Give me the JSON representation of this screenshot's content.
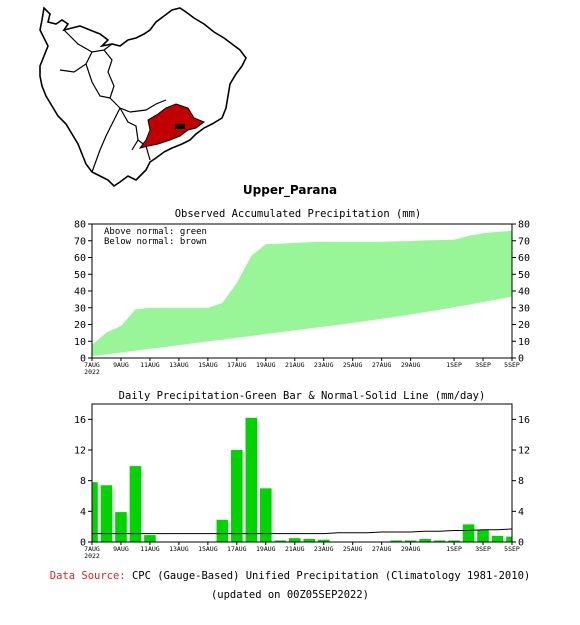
{
  "region_title": "Upper_Parana",
  "map": {
    "highlight_color": "#c00000"
  },
  "footer": {
    "source_label": "Data Source:",
    "source_text": "CPC (Gauge-Based) Unified Precipitation (Climatology 1981-2010)",
    "updated_text": "(updated on 00Z05SEP2022)"
  },
  "colors": {
    "green_area": "#98f598",
    "bar": "#00d400"
  },
  "chart_data": [
    {
      "type": "area",
      "title": "Observed Accumulated Precipitation (mm)",
      "legend": [
        "Above normal: green",
        "Below normal: brown"
      ],
      "legend_position": "top-left",
      "x_tick_labels": [
        "7AUG",
        "9AUG",
        "11AUG",
        "13AUG",
        "15AUG",
        "17AUG",
        "19AUG",
        "21AUG",
        "23AUG",
        "25AUG",
        "27AUG",
        "29AUG",
        "1SEP",
        "3SEP",
        "5SEP"
      ],
      "x_tick_days": [
        0,
        2,
        4,
        6,
        8,
        10,
        12,
        14,
        16,
        18,
        20,
        22,
        25,
        27,
        29
      ],
      "year_label": "2022",
      "x_range_days": [
        0,
        29
      ],
      "ylim": [
        0,
        80
      ],
      "y_ticks": [
        0,
        10,
        20,
        30,
        40,
        50,
        60,
        70,
        80
      ],
      "series": [
        {
          "values": [
            7.8,
            15.2,
            19.1,
            29.0,
            29.9,
            29.9,
            29.9,
            29.9,
            29.9,
            32.8,
            44.8,
            61.0,
            68.0,
            68.2,
            68.7,
            69.1,
            69.4,
            69.4,
            69.4,
            69.4,
            69.4,
            69.6,
            69.8,
            70.2,
            70.4,
            70.6,
            72.9,
            74.5,
            75.3,
            76.0
          ]
        },
        {
          "values": [
            1.1,
            2.2,
            3.3,
            4.4,
            5.5,
            6.6,
            7.7,
            8.8,
            9.9,
            11.0,
            12.1,
            13.2,
            14.3,
            15.4,
            16.5,
            17.6,
            18.7,
            19.8,
            21.0,
            22.2,
            23.4,
            24.7,
            26.0,
            27.4,
            28.8,
            30.3,
            31.8,
            33.4,
            35.0,
            36.7
          ]
        }
      ]
    },
    {
      "type": "bar",
      "title": "Daily Precipitation-Green Bar & Normal-Solid Line (mm/day)",
      "x_tick_labels": [
        "7AUG",
        "9AUG",
        "11AUG",
        "13AUG",
        "15AUG",
        "17AUG",
        "19AUG",
        "21AUG",
        "23AUG",
        "25AUG",
        "27AUG",
        "29AUG",
        "1SEP",
        "3SEP",
        "5SEP"
      ],
      "x_tick_days": [
        0,
        2,
        4,
        6,
        8,
        10,
        12,
        14,
        16,
        18,
        20,
        22,
        25,
        27,
        29
      ],
      "year_label": "2022",
      "ylim": [
        0,
        18
      ],
      "y_ticks": [
        0,
        4,
        8,
        12,
        16
      ],
      "series": [
        {
          "values": [
            7.8,
            7.4,
            3.9,
            9.9,
            0.9,
            0.0,
            0.0,
            0.0,
            0.0,
            2.9,
            12.0,
            16.2,
            7.0,
            0.2,
            0.5,
            0.4,
            0.3,
            0.0,
            0.0,
            0.0,
            0.0,
            0.2,
            0.2,
            0.4,
            0.2,
            0.2,
            2.3,
            1.6,
            0.8,
            0.7
          ]
        },
        {
          "values": [
            1.1,
            1.1,
            1.1,
            1.1,
            1.1,
            1.1,
            1.1,
            1.1,
            1.1,
            1.1,
            1.1,
            1.1,
            1.1,
            1.1,
            1.1,
            1.1,
            1.1,
            1.2,
            1.2,
            1.2,
            1.3,
            1.3,
            1.3,
            1.4,
            1.4,
            1.5,
            1.5,
            1.6,
            1.6,
            1.7
          ]
        }
      ]
    }
  ]
}
